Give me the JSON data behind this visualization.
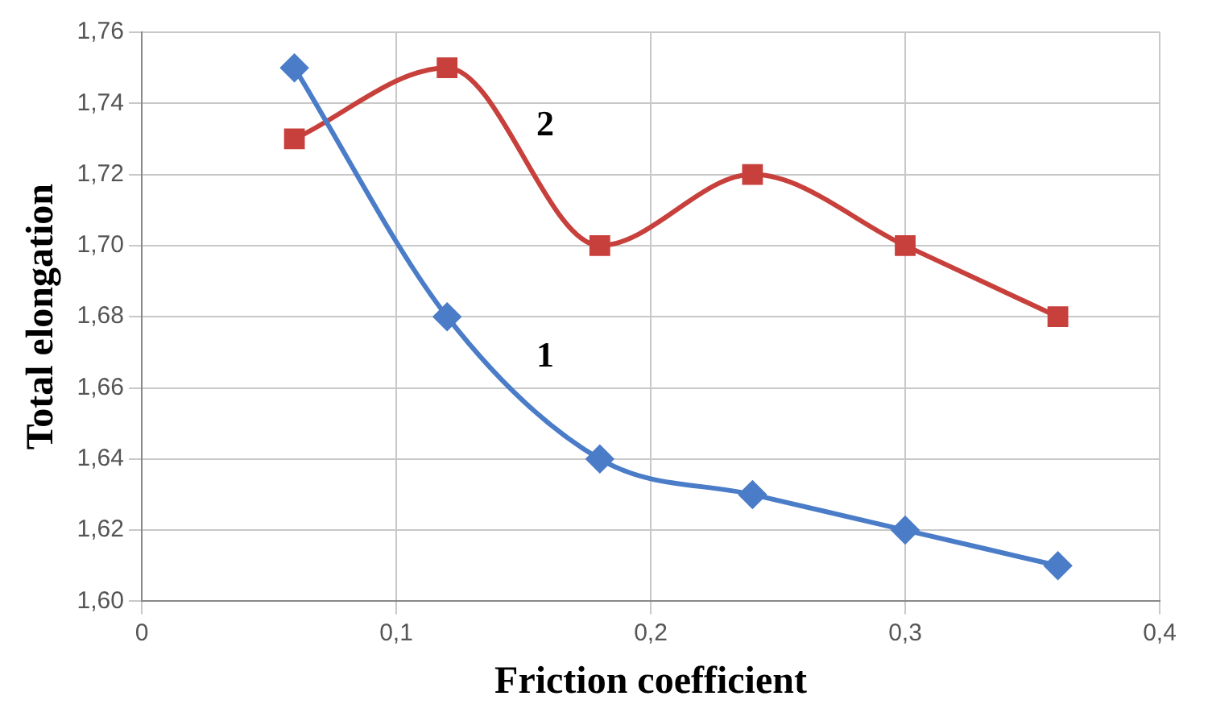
{
  "chart_data": {
    "type": "line",
    "xlabel": "Friction coefficient",
    "ylabel": "Total elongation",
    "xlim": [
      0,
      0.4
    ],
    "xticks": [
      0,
      {
        "value": 0.1,
        "label": "0,1"
      },
      {
        "value": 0.2,
        "label": "0,2"
      },
      {
        "value": 0.3,
        "label": "0,3"
      },
      {
        "value": 0.4,
        "label": "0,4"
      }
    ],
    "ylim": [
      1.6,
      1.76
    ],
    "yticks": [
      {
        "value": 1.6,
        "label": "1,60"
      },
      {
        "value": 1.62,
        "label": "1,62"
      },
      {
        "value": 1.64,
        "label": "1,64"
      },
      {
        "value": 1.66,
        "label": "1,66"
      },
      {
        "value": 1.68,
        "label": "1,68"
      },
      {
        "value": 1.7,
        "label": "1,70"
      },
      {
        "value": 1.72,
        "label": "1,72"
      },
      {
        "value": 1.74,
        "label": "1,74"
      },
      {
        "value": 1.76,
        "label": "1,76"
      }
    ],
    "x": [
      0.06,
      0.12,
      0.18,
      0.24,
      0.3,
      0.36
    ],
    "series": [
      {
        "name": "1",
        "color": "#4a7cc8",
        "marker": "diamond",
        "values": [
          1.75,
          1.68,
          1.64,
          1.63,
          1.62,
          1.61
        ]
      },
      {
        "name": "2",
        "color": "#c8403c",
        "marker": "square",
        "values": [
          1.73,
          1.75,
          1.7,
          1.72,
          1.7,
          1.68
        ]
      }
    ],
    "grid": true,
    "legend": false,
    "line_style": "solid"
  }
}
